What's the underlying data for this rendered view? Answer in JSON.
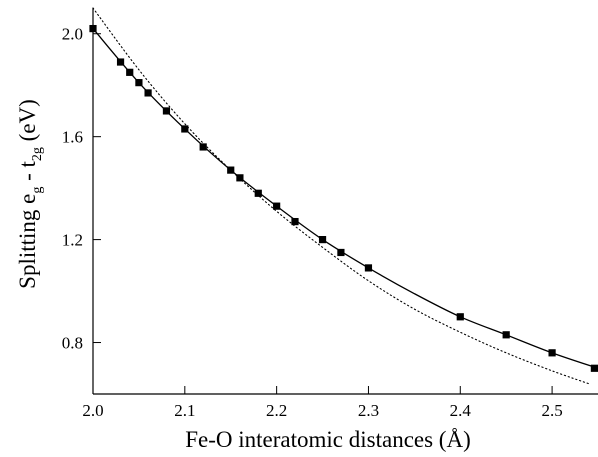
{
  "chart_data": {
    "type": "scatter",
    "xlabel": "Fe-O interatomic distances (Å)",
    "ylabel": {
      "prefix": "Splitting e",
      "sub1": "g",
      "middle": " - t",
      "sub2": "2g",
      "suffix": " (eV)"
    },
    "xlim": [
      2.0,
      2.55
    ],
    "ylim": [
      0.6,
      2.1
    ],
    "x_ticks": [
      "2.0",
      "2.1",
      "2.2",
      "2.3",
      "2.4",
      "2.5"
    ],
    "x_tick_values": [
      2.0,
      2.1,
      2.2,
      2.3,
      2.4,
      2.5
    ],
    "y_ticks": [
      "0.8",
      "1.2",
      "1.6",
      "2.0"
    ],
    "y_tick_values": [
      0.8,
      1.2,
      1.6,
      2.0
    ],
    "grid": false,
    "series": [
      {
        "style": "markers",
        "marker": "square",
        "points": [
          [
            2.0,
            2.02
          ],
          [
            2.03,
            1.89
          ],
          [
            2.04,
            1.85
          ],
          [
            2.05,
            1.81
          ],
          [
            2.06,
            1.77
          ],
          [
            2.08,
            1.7
          ],
          [
            2.1,
            1.63
          ],
          [
            2.12,
            1.56
          ],
          [
            2.15,
            1.47
          ],
          [
            2.16,
            1.44
          ],
          [
            2.18,
            1.38
          ],
          [
            2.2,
            1.33
          ],
          [
            2.22,
            1.27
          ],
          [
            2.25,
            1.2
          ],
          [
            2.27,
            1.15
          ],
          [
            2.3,
            1.09
          ],
          [
            2.4,
            0.9
          ],
          [
            2.45,
            0.83
          ],
          [
            2.5,
            0.76
          ],
          [
            2.55,
            0.7
          ]
        ]
      },
      {
        "style": "solid",
        "points": [
          [
            2.0,
            2.02
          ],
          [
            2.05,
            1.81
          ],
          [
            2.1,
            1.63
          ],
          [
            2.15,
            1.47
          ],
          [
            2.2,
            1.33
          ],
          [
            2.25,
            1.2
          ],
          [
            2.3,
            1.09
          ],
          [
            2.35,
            0.99
          ],
          [
            2.4,
            0.9
          ],
          [
            2.45,
            0.83
          ],
          [
            2.5,
            0.76
          ],
          [
            2.55,
            0.7
          ]
        ]
      },
      {
        "style": "dotted",
        "points": [
          [
            2.0,
            2.1
          ],
          [
            2.05,
            1.86
          ],
          [
            2.1,
            1.65
          ],
          [
            2.15,
            1.47
          ],
          [
            2.2,
            1.31
          ],
          [
            2.25,
            1.17
          ],
          [
            2.3,
            1.04
          ],
          [
            2.35,
            0.93
          ],
          [
            2.4,
            0.84
          ],
          [
            2.45,
            0.76
          ],
          [
            2.5,
            0.69
          ],
          [
            2.54,
            0.64
          ]
        ]
      }
    ]
  }
}
